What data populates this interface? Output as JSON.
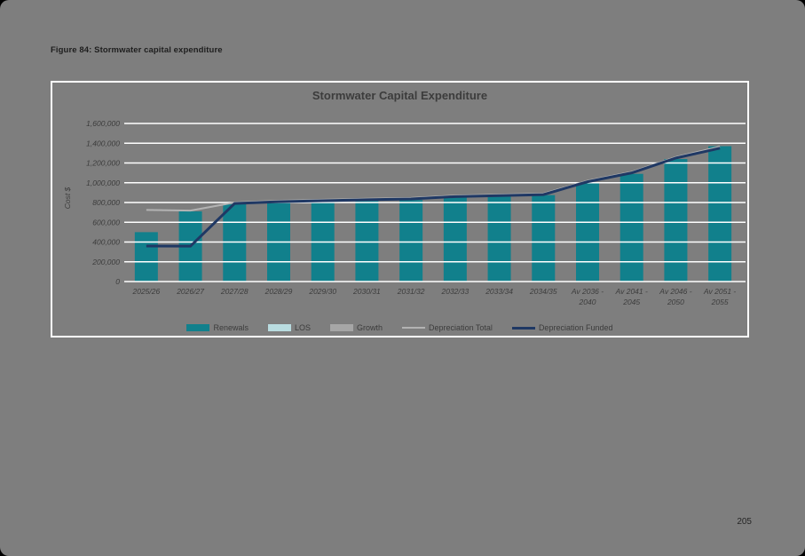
{
  "page": {
    "caption": "Figure 84: Stormwater capital expenditure",
    "page_number": "205"
  },
  "colors": {
    "page_background": "#7E7E7E",
    "frame_border": "#FFFFFF",
    "gridline": "#FFFFFF",
    "text": "#3C3C3C",
    "renewals_teal": "#11808C",
    "los_lightblue": "#B9DCE0",
    "growth_gray": "#A6A6A6",
    "depreciation_total_gray": "#B3B3B3",
    "depreciation_funded_navy": "#1F3864"
  },
  "chart_data": {
    "type": "bar",
    "title": "Stormwater Capital Expenditure",
    "xlabel": "",
    "ylabel": "Cost $",
    "ylim": [
      0,
      1600000
    ],
    "ytick_step": 200000,
    "grid": true,
    "legend_position": "bottom",
    "categories": [
      "2025/26",
      "2026/27",
      "2027/28",
      "2028/29",
      "2029/30",
      "2030/31",
      "2031/32",
      "2032/33",
      "2033/34",
      "2034/35",
      "Av 2036 -\n2040",
      "Av 2041 -\n2045",
      "Av 2046 -\n2050",
      "Av 2051 -\n2055"
    ],
    "series": [
      {
        "name": "Renewals",
        "type": "bar",
        "color": "#11808C",
        "values": [
          500000,
          710000,
          785000,
          800000,
          815000,
          820000,
          825000,
          855000,
          865000,
          875000,
          1000000,
          1090000,
          1240000,
          1370000
        ]
      },
      {
        "name": "LOS",
        "type": "bar",
        "color": "#B9DCE0",
        "values": [
          0,
          0,
          0,
          0,
          0,
          0,
          0,
          0,
          0,
          0,
          0,
          0,
          0,
          0
        ]
      },
      {
        "name": "Growth",
        "type": "bar",
        "color": "#A6A6A6",
        "values": [
          0,
          0,
          0,
          0,
          0,
          0,
          0,
          0,
          0,
          0,
          0,
          0,
          0,
          0
        ]
      },
      {
        "name": "Depreciation Total",
        "type": "line",
        "color": "#B3B3B3",
        "values": [
          725000,
          718000,
          800000,
          818000,
          828000,
          838000,
          846000,
          870000,
          880000,
          890000,
          1020000,
          1110000,
          1260000,
          1365000
        ]
      },
      {
        "name": "Depreciation Funded",
        "type": "line",
        "color": "#1F3864",
        "values": [
          360000,
          358000,
          790000,
          808000,
          818000,
          828000,
          836000,
          860000,
          870000,
          880000,
          1010000,
          1100000,
          1250000,
          1350000
        ]
      }
    ]
  }
}
